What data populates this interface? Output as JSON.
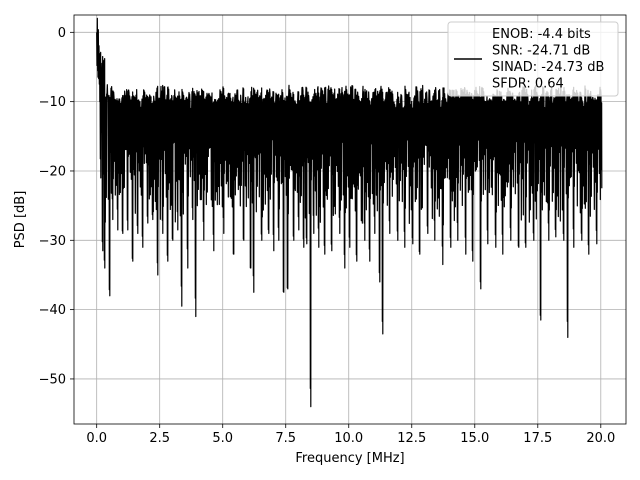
{
  "chart_data": {
    "type": "line",
    "title": "",
    "xlabel": "Frequency [MHz]",
    "ylabel": "PSD [dB]",
    "xlim": [
      -0.9,
      21.0
    ],
    "ylim": [
      -56.5,
      2.5
    ],
    "grid": true,
    "legend_placement": "upper-right",
    "line_color": "#000000",
    "x_ticks": [
      0.0,
      2.5,
      5.0,
      7.5,
      10.0,
      12.5,
      15.0,
      17.5,
      20.0
    ],
    "x_tick_labels": [
      "0.0",
      "2.5",
      "5.0",
      "7.5",
      "10.0",
      "12.5",
      "15.0",
      "17.5",
      "20.0"
    ],
    "y_ticks": [
      0,
      -10,
      -20,
      -30,
      -40,
      -50
    ],
    "y_tick_labels": [
      "0",
      "−10",
      "−20",
      "−30",
      "−40",
      "−50"
    ],
    "legend_entries": [
      "ENOB: -4.4 bits",
      "SNR: -24.71 dB",
      "SINAD: -24.73 dB",
      "SFDR: 0.64"
    ],
    "series": [
      {
        "x": [
          0.0,
          0.04,
          0.08,
          0.12,
          0.2,
          0.3,
          0.4,
          0.5,
          0.6,
          0.8,
          1.0,
          1.2,
          1.4,
          1.6,
          1.8,
          2.0,
          2.2,
          2.4,
          2.6,
          2.8,
          3.0,
          3.2,
          3.35,
          3.6,
          3.8,
          3.9,
          4.2,
          4.6,
          5.0,
          5.4,
          5.8,
          6.1,
          6.2,
          6.5,
          6.8,
          7.0,
          7.2,
          7.4,
          7.55,
          7.8,
          8.0,
          8.2,
          8.3,
          8.45,
          8.6,
          8.8,
          9.0,
          9.3,
          9.6,
          9.8,
          10.0,
          10.3,
          10.6,
          10.8,
          11.0,
          11.2,
          11.3,
          11.6,
          11.9,
          12.2,
          12.5,
          12.8,
          13.1,
          13.4,
          13.7,
          14.0,
          14.3,
          14.6,
          14.9,
          15.2,
          15.5,
          15.8,
          16.1,
          16.4,
          16.7,
          17.0,
          17.3,
          17.6,
          17.9,
          18.2,
          18.5,
          18.65,
          18.9,
          19.2,
          19.5,
          19.8,
          20.0
        ],
        "y": [
          0.0,
          -2.0,
          -10.0,
          -21.0,
          -31.5,
          -34.0,
          -9.0,
          -38.0,
          -27.0,
          -28.5,
          -29.0,
          -28.5,
          -33.0,
          -29.0,
          -31.0,
          -27.5,
          -27.0,
          -35.0,
          -29.0,
          -33.0,
          -30.0,
          -28.5,
          -39.5,
          -34.0,
          -27.0,
          -41.0,
          -30.0,
          -31.5,
          -29.0,
          -32.0,
          -30.0,
          -34.0,
          -37.5,
          -30.0,
          -29.0,
          -31.5,
          -30.0,
          -37.5,
          -37.0,
          -30.0,
          -28.5,
          -31.0,
          -30.5,
          -54.0,
          -29.0,
          -31.0,
          -32.0,
          -31.5,
          -29.0,
          -34.0,
          -31.0,
          -33.0,
          -30.0,
          -33.0,
          -29.0,
          -36.0,
          -43.5,
          -29.0,
          -30.0,
          -31.0,
          -30.5,
          -32.0,
          -29.0,
          -30.0,
          -33.5,
          -31.0,
          -30.0,
          -32.0,
          -33.0,
          -37.0,
          -30.5,
          -31.0,
          -32.0,
          -30.0,
          -31.0,
          -31.0,
          -30.0,
          -41.5,
          -30.0,
          -29.5,
          -30.0,
          -44.0,
          -31.0,
          -30.0,
          -32.0,
          -30.5,
          -22.5
        ]
      }
    ]
  }
}
